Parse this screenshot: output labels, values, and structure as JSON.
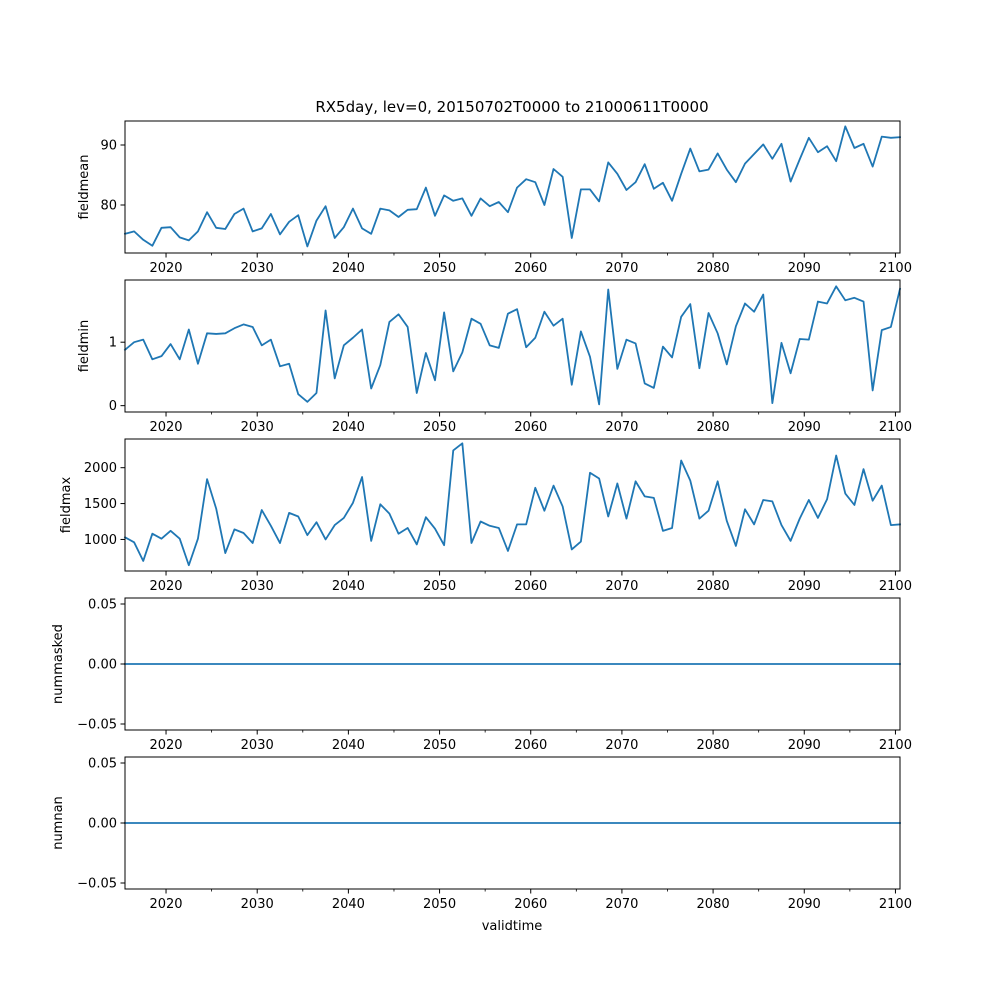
{
  "figure": {
    "title": "RX5day, lev=0, 20150702T0000 to 21000611T0000",
    "xlabel": "validtime"
  },
  "colors": {
    "line": "#1f77b4",
    "axis": "#000000",
    "background": "#ffffff"
  },
  "chart_data": [
    {
      "type": "line",
      "ylabel": "fieldmean",
      "xlim": [
        2015.5,
        2100.5
      ],
      "ylim": [
        72,
        94
      ],
      "xticks": [
        2020,
        2030,
        2040,
        2050,
        2060,
        2070,
        2080,
        2090,
        2100
      ],
      "yticks": [
        80,
        90
      ],
      "ytick_labels": [
        "80",
        "90"
      ],
      "x_start": 2015.5,
      "x_step": 1,
      "values": [
        75.2,
        75.6,
        74.2,
        73.2,
        76.2,
        76.3,
        74.6,
        74.1,
        75.6,
        78.8,
        76.2,
        76.0,
        78.5,
        79.4,
        75.6,
        76.1,
        78.5,
        75.1,
        77.2,
        78.3,
        73.1,
        77.4,
        79.8,
        74.5,
        76.3,
        79.4,
        76.1,
        75.2,
        79.4,
        79.1,
        78.0,
        79.2,
        79.3,
        82.9,
        78.2,
        81.6,
        80.7,
        81.1,
        78.2,
        81.1,
        79.8,
        80.5,
        78.8,
        82.9,
        84.3,
        83.8,
        80.0,
        86.0,
        84.7,
        74.5,
        82.6,
        82.6,
        80.6,
        87.1,
        85.2,
        82.5,
        83.8,
        86.8,
        82.7,
        83.7,
        80.7,
        85.2,
        89.4,
        85.6,
        85.9,
        88.6,
        85.9,
        83.8,
        86.9,
        88.5,
        90.1,
        87.7,
        90.2,
        83.9,
        87.6,
        91.2,
        88.8,
        89.8,
        87.3,
        93.1,
        89.5,
        90.2,
        86.4,
        91.4,
        91.2,
        91.3
      ]
    },
    {
      "type": "line",
      "ylabel": "fieldmin",
      "xlim": [
        2015.5,
        2100.5
      ],
      "ylim": [
        -0.1,
        1.98
      ],
      "xticks": [
        2020,
        2030,
        2040,
        2050,
        2060,
        2070,
        2080,
        2090,
        2100
      ],
      "yticks": [
        0,
        1
      ],
      "ytick_labels": [
        "0",
        "1"
      ],
      "x_start": 2015.5,
      "x_step": 1,
      "values": [
        0.88,
        1.0,
        1.04,
        0.73,
        0.78,
        0.97,
        0.73,
        1.2,
        0.66,
        1.14,
        1.13,
        1.14,
        1.22,
        1.28,
        1.24,
        0.95,
        1.04,
        0.62,
        0.66,
        0.18,
        0.06,
        0.2,
        1.5,
        0.43,
        0.95,
        1.07,
        1.2,
        0.27,
        0.64,
        1.32,
        1.44,
        1.24,
        0.2,
        0.83,
        0.4,
        1.47,
        0.54,
        0.84,
        1.37,
        1.29,
        0.95,
        0.91,
        1.45,
        1.52,
        0.92,
        1.07,
        1.48,
        1.26,
        1.37,
        0.33,
        1.17,
        0.77,
        0.02,
        1.83,
        0.58,
        1.04,
        0.98,
        0.35,
        0.28,
        0.93,
        0.76,
        1.4,
        1.6,
        0.59,
        1.46,
        1.14,
        0.65,
        1.25,
        1.61,
        1.48,
        1.75,
        0.04,
        0.99,
        0.51,
        1.05,
        1.04,
        1.64,
        1.61,
        1.88,
        1.66,
        1.7,
        1.64,
        0.24,
        1.19,
        1.24,
        1.84
      ]
    },
    {
      "type": "line",
      "ylabel": "fieldmax",
      "xlim": [
        2015.5,
        2100.5
      ],
      "ylim": [
        560,
        2400
      ],
      "xticks": [
        2020,
        2030,
        2040,
        2050,
        2060,
        2070,
        2080,
        2090,
        2100
      ],
      "yticks": [
        1000,
        1500,
        2000
      ],
      "ytick_labels": [
        "1000",
        "1500",
        "2000"
      ],
      "x_start": 2015.5,
      "x_step": 1,
      "values": [
        1030,
        960,
        700,
        1080,
        1010,
        1120,
        1010,
        640,
        1010,
        1840,
        1430,
        810,
        1140,
        1090,
        950,
        1410,
        1190,
        950,
        1370,
        1320,
        1060,
        1240,
        1000,
        1200,
        1300,
        1510,
        1870,
        980,
        1490,
        1360,
        1080,
        1160,
        930,
        1310,
        1150,
        920,
        2240,
        2340,
        950,
        1250,
        1190,
        1160,
        840,
        1210,
        1210,
        1720,
        1400,
        1750,
        1460,
        860,
        970,
        1930,
        1850,
        1320,
        1780,
        1290,
        1810,
        1600,
        1580,
        1120,
        1160,
        2100,
        1820,
        1290,
        1400,
        1810,
        1260,
        910,
        1420,
        1210,
        1550,
        1530,
        1200,
        980,
        1290,
        1550,
        1300,
        1560,
        2170,
        1640,
        1480,
        1980,
        1540,
        1750,
        1200,
        1210
      ]
    },
    {
      "type": "line",
      "ylabel": "nummasked",
      "xlim": [
        2015.5,
        2100.5
      ],
      "ylim": [
        -0.055,
        0.055
      ],
      "xticks": [
        2020,
        2030,
        2040,
        2050,
        2060,
        2070,
        2080,
        2090,
        2100
      ],
      "yticks": [
        -0.05,
        0,
        0.05
      ],
      "ytick_labels": [
        "−0.05",
        "0.00",
        "0.05"
      ],
      "x_start": 2015.5,
      "x_step": 85,
      "values": [
        0,
        0
      ]
    },
    {
      "type": "line",
      "ylabel": "numnan",
      "xlim": [
        2015.5,
        2100.5
      ],
      "ylim": [
        -0.055,
        0.055
      ],
      "xticks": [
        2020,
        2030,
        2040,
        2050,
        2060,
        2070,
        2080,
        2090,
        2100
      ],
      "yticks": [
        -0.05,
        0,
        0.05
      ],
      "ytick_labels": [
        "−0.05",
        "0.00",
        "0.05"
      ],
      "x_start": 2015.5,
      "x_step": 85,
      "values": [
        0,
        0
      ]
    }
  ]
}
